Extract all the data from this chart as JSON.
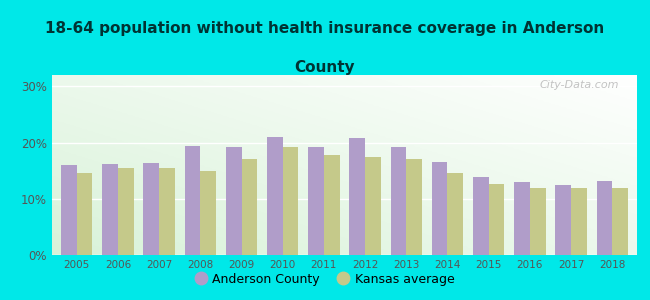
{
  "title_line1": "18-64 population without health insurance coverage in Anderson",
  "title_line2": "County",
  "years": [
    2005,
    2006,
    2007,
    2008,
    2009,
    2010,
    2011,
    2012,
    2013,
    2014,
    2015,
    2016,
    2017,
    2018
  ],
  "anderson_county": [
    16.0,
    16.2,
    16.3,
    19.3,
    19.2,
    21.0,
    19.2,
    20.8,
    19.2,
    16.5,
    13.9,
    12.9,
    12.5,
    13.2
  ],
  "kansas_avg": [
    14.5,
    15.5,
    15.5,
    15.0,
    17.0,
    19.2,
    17.8,
    17.5,
    17.0,
    14.5,
    12.6,
    12.0,
    12.0,
    12.0
  ],
  "bar_color_anderson": "#b09dc9",
  "bar_color_kansas": "#c5c98a",
  "bg_color": "#00e8e8",
  "yticks": [
    0,
    10,
    20,
    30
  ],
  "ylim": [
    0,
    32
  ],
  "legend_anderson": "Anderson County",
  "legend_kansas": "Kansas average",
  "watermark": "City-Data.com",
  "title_color": "#003333",
  "tick_color": "#555555",
  "grid_color": "#ffffff"
}
